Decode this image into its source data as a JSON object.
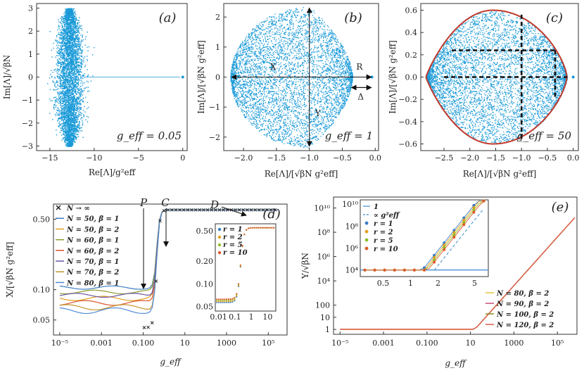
{
  "colors": {
    "cloud": "#1a9ad8",
    "boundary": "#c0392b",
    "ninf": "#222222",
    "curve": "#e0703a",
    "dash": "#111111",
    "series": [
      "#3b7ec4",
      "#e6a020",
      "#8c9b2a",
      "#d9532b",
      "#6a54a6",
      "#c4962c",
      "#4e8ad6"
    ],
    "inset": [
      "#3b7ec4",
      "#e6a020",
      "#8fbf2a",
      "#e05a2b"
    ],
    "curveE": [
      "#e8c23a",
      "#c44a7a",
      "#8a8a1a",
      "#e05a4a"
    ]
  },
  "chart_data": [
    {
      "id": "a",
      "type": "scatter",
      "panel_label": "(a)",
      "xlabel": "Re[Λ]/g²eff",
      "ylabel": "Im[Λ]/√βN",
      "xlim": [
        -16.5,
        0.5
      ],
      "ylim": [
        -3.2,
        3.2
      ],
      "xticks": [
        "−15",
        "−10",
        "−5",
        "0"
      ],
      "yticks": [
        "3",
        "2",
        "1",
        "0",
        "−1",
        "−2",
        "−3"
      ],
      "cloud": {
        "center": [
          -12.8,
          0
        ],
        "half_width": 1.9,
        "half_height": 3.0
      },
      "outlier": [
        0,
        0
      ],
      "annotation": "g_eff = 0.05"
    },
    {
      "id": "b",
      "type": "scatter",
      "panel_label": "(b)",
      "xlabel": "Re[Λ]/[√βN g²eff]",
      "ylabel": "Im[Λ]/[√βN g²eff]",
      "xlim": [
        -2.3,
        0.05
      ],
      "ylim": [
        -2.45,
        2.45
      ],
      "xticks": [
        "−2.0",
        "−1.5",
        "−1.0",
        "−0.5",
        "0.0"
      ],
      "yticks": [
        "2",
        "1",
        "0",
        "−1",
        "−2"
      ],
      "cloud": {
        "left": -2.2,
        "right": -0.35,
        "peak_x": -1.0,
        "half_height": 2.35
      },
      "outlier": [
        -0.05,
        0
      ],
      "labels": {
        "X": "X",
        "Y": "Y",
        "R": "R",
        "Delta": "Δ"
      },
      "annotation": "g_eff = 1"
    },
    {
      "id": "c",
      "type": "scatter",
      "panel_label": "(c)",
      "xlabel": "Re[Λ]/[√βN g²eff]",
      "ylabel": "Im[Λ]/[√βN g²eff]",
      "xlim": [
        -2.95,
        0.1
      ],
      "ylim": [
        -0.66,
        0.66
      ],
      "xticks": [
        "−2.5",
        "−2.0",
        "−1.5",
        "−1.0",
        "−0.5",
        "0.0"
      ],
      "yticks": [
        "0.6",
        "0.4",
        "0.2",
        "0.0",
        "−0.2",
        "−0.4",
        "−0.6"
      ],
      "cloud": {
        "left": -2.85,
        "right": -0.12,
        "peak_x": -1.55,
        "half_height": 0.6
      },
      "outlier": [
        0,
        0
      ],
      "annotation": "g_eff = 50"
    },
    {
      "id": "d",
      "type": "line",
      "panel_label": "(d)",
      "xlabel": "g_eff",
      "ylabel": "X/[√βN g²eff]",
      "xscale": "log",
      "yscale": "log",
      "xlim_log10": [
        -5.3,
        5.9
      ],
      "ylim_log10": [
        -1.45,
        -0.15
      ],
      "xticks": [
        "10⁻⁵",
        "0.001",
        "0.100",
        "10",
        "1000",
        "10⁵"
      ],
      "yticks": [
        "0.50",
        "0.10",
        "0.05"
      ],
      "annotations": {
        "P": "P",
        "C": "C",
        "D": "D"
      },
      "series": [
        {
          "name": "N → ∞",
          "low": null
        },
        {
          "name": "N = 50,  β = 1",
          "low": 0.105
        },
        {
          "name": "N = 50,  β = 2",
          "low": 0.082
        },
        {
          "name": "N = 60,  β = 1",
          "low": 0.095
        },
        {
          "name": "N = 60,  β = 2",
          "low": 0.074
        },
        {
          "name": "N = 70,  β = 1",
          "low": 0.088
        },
        {
          "name": "N = 70,  β = 2",
          "low": 0.067
        },
        {
          "name": "N = 80,  β = 1",
          "low": 0.062
        }
      ],
      "high_value": 0.62,
      "inset": {
        "xticks": [
          "0.01",
          "0.1",
          "1",
          "10"
        ],
        "yticks": [
          "0.50",
          "0.20",
          "0.10",
          "0.05"
        ],
        "legend": [
          "r = 1",
          "r = 2",
          "r = 5",
          "r = 10"
        ]
      }
    },
    {
      "id": "e",
      "type": "line",
      "panel_label": "(e)",
      "xlabel": "g_eff",
      "ylabel": "Y/√βN",
      "xscale": "log",
      "yscale": "log",
      "xlim_log10": [
        -5.3,
        5.9
      ],
      "ylim_log10": [
        -0.4,
        10.9
      ],
      "xticks": [
        "10⁻⁵",
        "0.001",
        "0.100",
        "10",
        "1000",
        "10⁵"
      ],
      "yticks": [
        "10¹⁰",
        "10⁸",
        "10⁶",
        "10⁴",
        "100",
        "10",
        "1"
      ],
      "series": [
        {
          "name": "N = 80,  β = 2"
        },
        {
          "name": "N = 90,  β = 2"
        },
        {
          "name": "N = 100,  β = 2"
        },
        {
          "name": "N = 120,  β = 2"
        }
      ],
      "inset": {
        "xticks": [
          "0.5",
          "1",
          "2",
          "5"
        ],
        "yticks": [
          "10¹⁰",
          "10⁸",
          "10⁶",
          "10⁴"
        ],
        "legend": [
          "1",
          "∝ g²eff",
          "r = 1",
          "r = 2",
          "r = 5",
          "r = 10"
        ]
      }
    }
  ]
}
